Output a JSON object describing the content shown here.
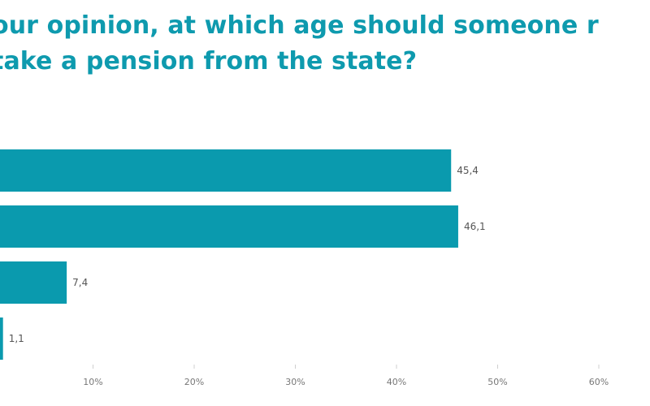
{
  "title_lines": [
    "our opinion, at which age should someone r",
    "take a pension from the state?"
  ],
  "colors": {
    "bar": "#0a9aae",
    "title": "#0e9aae",
    "grid": "#e2e2e2",
    "axis": "#cfcfcf"
  },
  "chart_data": {
    "type": "bar",
    "orientation": "horizontal",
    "title": "our opinion, at which age should someone r take a pension from the state?",
    "values": [
      45.4,
      46.1,
      7.4,
      1.1
    ],
    "value_labels": [
      "45,4",
      "46,1",
      "7,4",
      "1,1"
    ],
    "xlim": [
      0,
      60
    ],
    "xticks": [
      10,
      20,
      30,
      40,
      50,
      60
    ],
    "xtick_labels": [
      "10%",
      "20%",
      "30%",
      "40%",
      "50%",
      "60%"
    ],
    "grid": false,
    "legend": "none"
  }
}
